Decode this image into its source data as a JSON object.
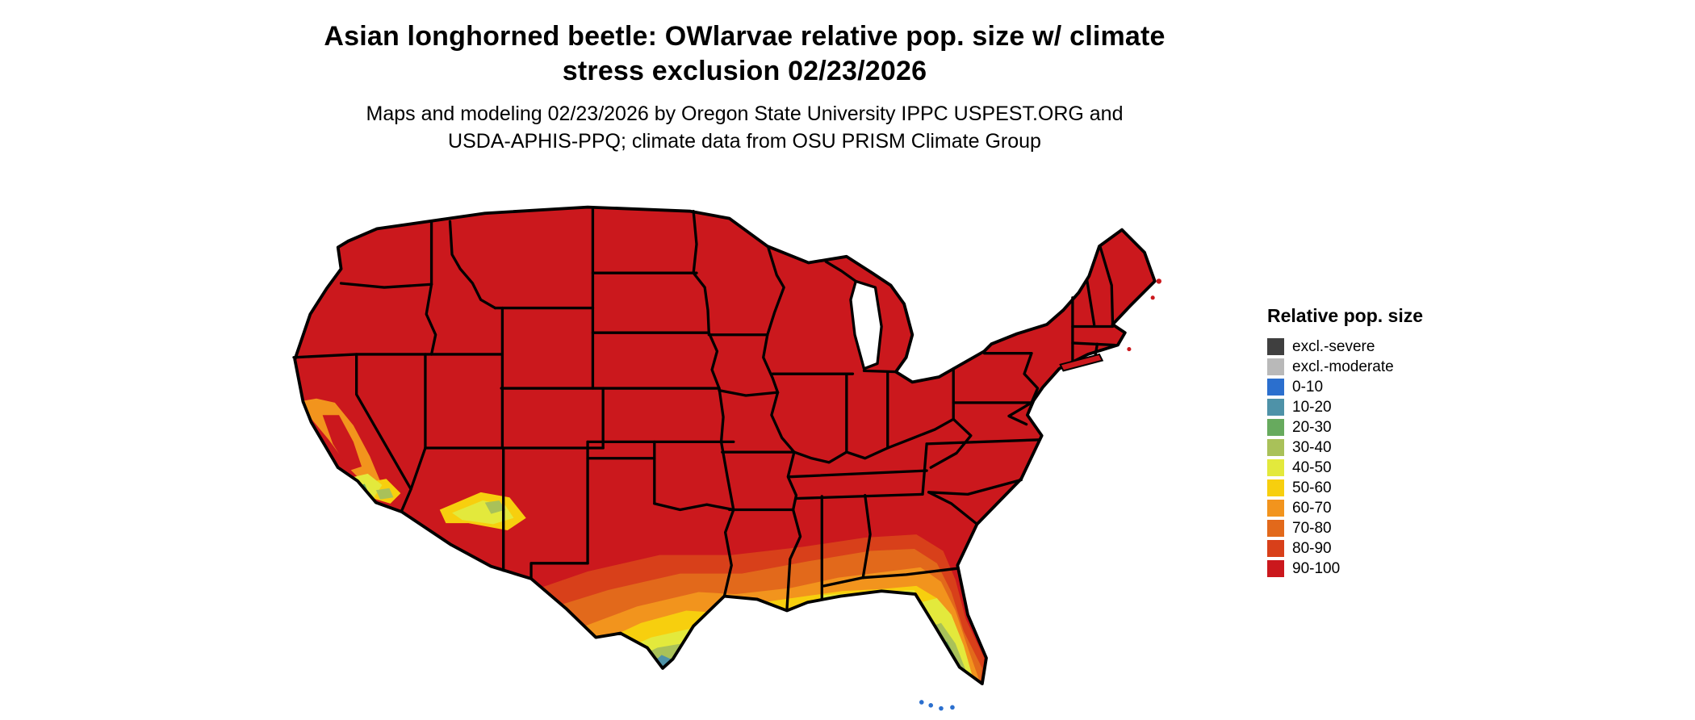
{
  "title": {
    "line1": "Asian longhorned beetle: OWlarvae relative pop. size w/ climate",
    "line2": "stress exclusion 02/23/2026"
  },
  "subtitle": {
    "line1": "Maps and modeling 02/23/2026 by Oregon State University IPPC USPEST.ORG and",
    "line2": "USDA-APHIS-PPQ; climate data from OSU PRISM Climate Group"
  },
  "legend": {
    "title": "Relative pop. size",
    "items": [
      {
        "label": "excl.-severe",
        "color": "#3f3f3f"
      },
      {
        "label": "excl.-moderate",
        "color": "#b9b9b9"
      },
      {
        "label": "0-10",
        "color": "#2b6fce"
      },
      {
        "label": "10-20",
        "color": "#4e92a8"
      },
      {
        "label": "20-30",
        "color": "#67aa5e"
      },
      {
        "label": "30-40",
        "color": "#a9c159"
      },
      {
        "label": "40-50",
        "color": "#e3e93c"
      },
      {
        "label": "50-60",
        "color": "#f7cf0e"
      },
      {
        "label": "60-70",
        "color": "#f2941d"
      },
      {
        "label": "70-80",
        "color": "#e2691b"
      },
      {
        "label": "80-90",
        "color": "#d8401a"
      },
      {
        "label": "90-100",
        "color": "#cb181d"
      }
    ]
  },
  "map": {
    "border_color": "#000000",
    "water_color": "#ffffff"
  }
}
